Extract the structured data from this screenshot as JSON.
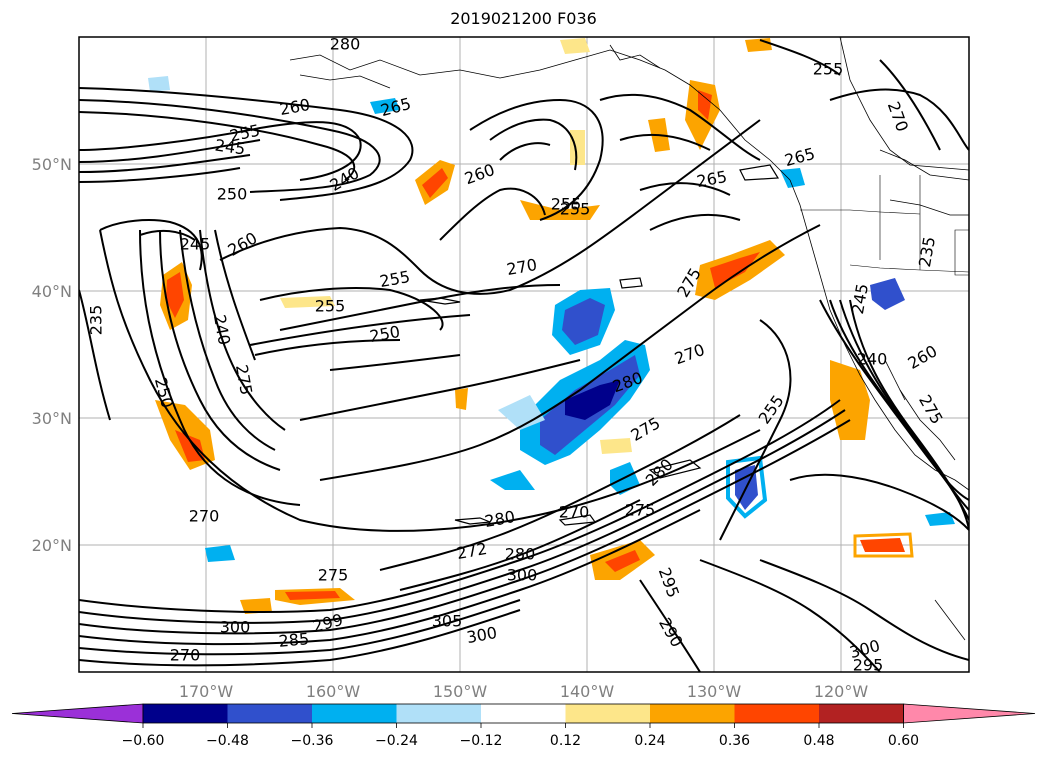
{
  "title": "2019021200 F036",
  "map": {
    "lat_labels": [
      "50°N",
      "40°N",
      "30°N",
      "20°N"
    ],
    "lon_labels": [
      "170°W",
      "160°W",
      "150°W",
      "140°W",
      "130°W",
      "120°W"
    ],
    "contour_labels": [
      "280",
      "260",
      "265",
      "255",
      "245",
      "240",
      "250",
      "245",
      "260",
      "250",
      "235",
      "240",
      "275",
      "255",
      "250",
      "260",
      "255",
      "270",
      "255",
      "255",
      "265",
      "255",
      "265",
      "275",
      "270",
      "280",
      "275",
      "270",
      "280",
      "275",
      "270",
      "280",
      "272",
      "280",
      "300",
      "305",
      "300",
      "295",
      "290",
      "255",
      "245",
      "240",
      "260",
      "235",
      "275",
      "270",
      "275",
      "299",
      "285",
      "300",
      "270",
      "300",
      "295"
    ]
  },
  "colorbar": {
    "ticks": [
      "−0.60",
      "−0.48",
      "−0.36",
      "−0.24",
      "−0.12",
      "0.12",
      "0.24",
      "0.36",
      "0.48",
      "0.60"
    ],
    "colors": [
      "#9b30d8",
      "#00008b",
      "#3050cc",
      "#00b0f0",
      "#b0e0f8",
      "#ffffff",
      "#fde68a",
      "#fca400",
      "#ff4500",
      "#b22222",
      "#ff88aa"
    ]
  }
}
